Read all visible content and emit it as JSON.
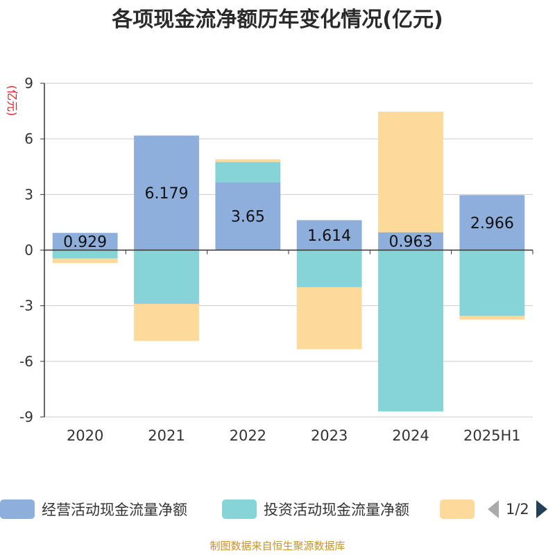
{
  "title": "各项现金流净额历年变化情况(亿元)",
  "source": "制图数据来自恒生聚源数据库",
  "legend": {
    "items": [
      {
        "label": "经营活动现金流量净额",
        "color": "#8eaedb"
      },
      {
        "label": "投资活动现金流量净额",
        "color": "#86d4d8"
      },
      {
        "label": "",
        "color": "#fdd99b"
      }
    ],
    "pager": "1/2"
  },
  "chart_data": {
    "type": "bar",
    "stacked": true,
    "title": "各项现金流净额历年变化情况(亿元)",
    "ylabel": "(亿元)",
    "xlabel": "",
    "ylim": [
      -9,
      9
    ],
    "yticks": [
      9,
      6,
      3,
      0,
      -3,
      -6,
      -9
    ],
    "grid": true,
    "legend_position": "bottom",
    "categories": [
      "2020",
      "2021",
      "2022",
      "2023",
      "2024",
      "2025H1"
    ],
    "series": [
      {
        "name": "经营活动现金流量净额",
        "color": "#8eaedb",
        "values": [
          0.929,
          6.179,
          3.65,
          1.614,
          0.963,
          2.966
        ],
        "labels": [
          "0.929",
          "6.179",
          "3.65",
          "1.614",
          "0.963",
          "2.966"
        ]
      },
      {
        "name": "投资活动现金流量净额",
        "color": "#86d4d8",
        "values": [
          -0.45,
          -2.9,
          1.1,
          -2.0,
          -8.7,
          -3.55
        ]
      },
      {
        "color": "#fdd99b",
        "values": [
          -0.25,
          -2.0,
          0.15,
          -3.35,
          6.5,
          -0.2
        ]
      }
    ]
  }
}
